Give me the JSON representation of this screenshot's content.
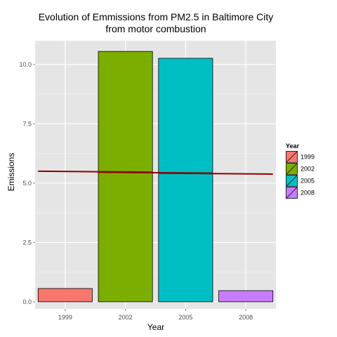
{
  "chart_data": {
    "type": "bar",
    "title_line1": "Evolution of Emmissions from PM2.5 in Baltimore City",
    "title_line2": "from motor combustion",
    "xlabel": "Year",
    "ylabel": "Emissions",
    "categories": [
      "1999",
      "2002",
      "2005",
      "2008"
    ],
    "values": [
      0.56,
      10.55,
      10.26,
      0.47
    ],
    "bar_colors": [
      "#F8766D",
      "#7CAE00",
      "#00BFC4",
      "#C77CFF"
    ],
    "ylim": [
      -0.3,
      11.0
    ],
    "yticks": [
      0.0,
      2.5,
      5.0,
      7.5,
      10.0
    ],
    "ytick_labels": [
      "0.0",
      "2.5",
      "5.0",
      "7.5",
      "10.0"
    ],
    "trend_line": {
      "color": "#8B0000",
      "points": [
        {
          "x": "1999",
          "y": 5.5
        },
        {
          "x": "2002",
          "y": 5.46
        },
        {
          "x": "2005",
          "y": 5.42
        },
        {
          "x": "2008",
          "y": 5.38
        }
      ]
    },
    "grid": true,
    "panel_background": "#E5E5E5",
    "legend": {
      "title": "Year",
      "position": "right",
      "entries": [
        "1999",
        "2002",
        "2005",
        "2008"
      ]
    }
  }
}
